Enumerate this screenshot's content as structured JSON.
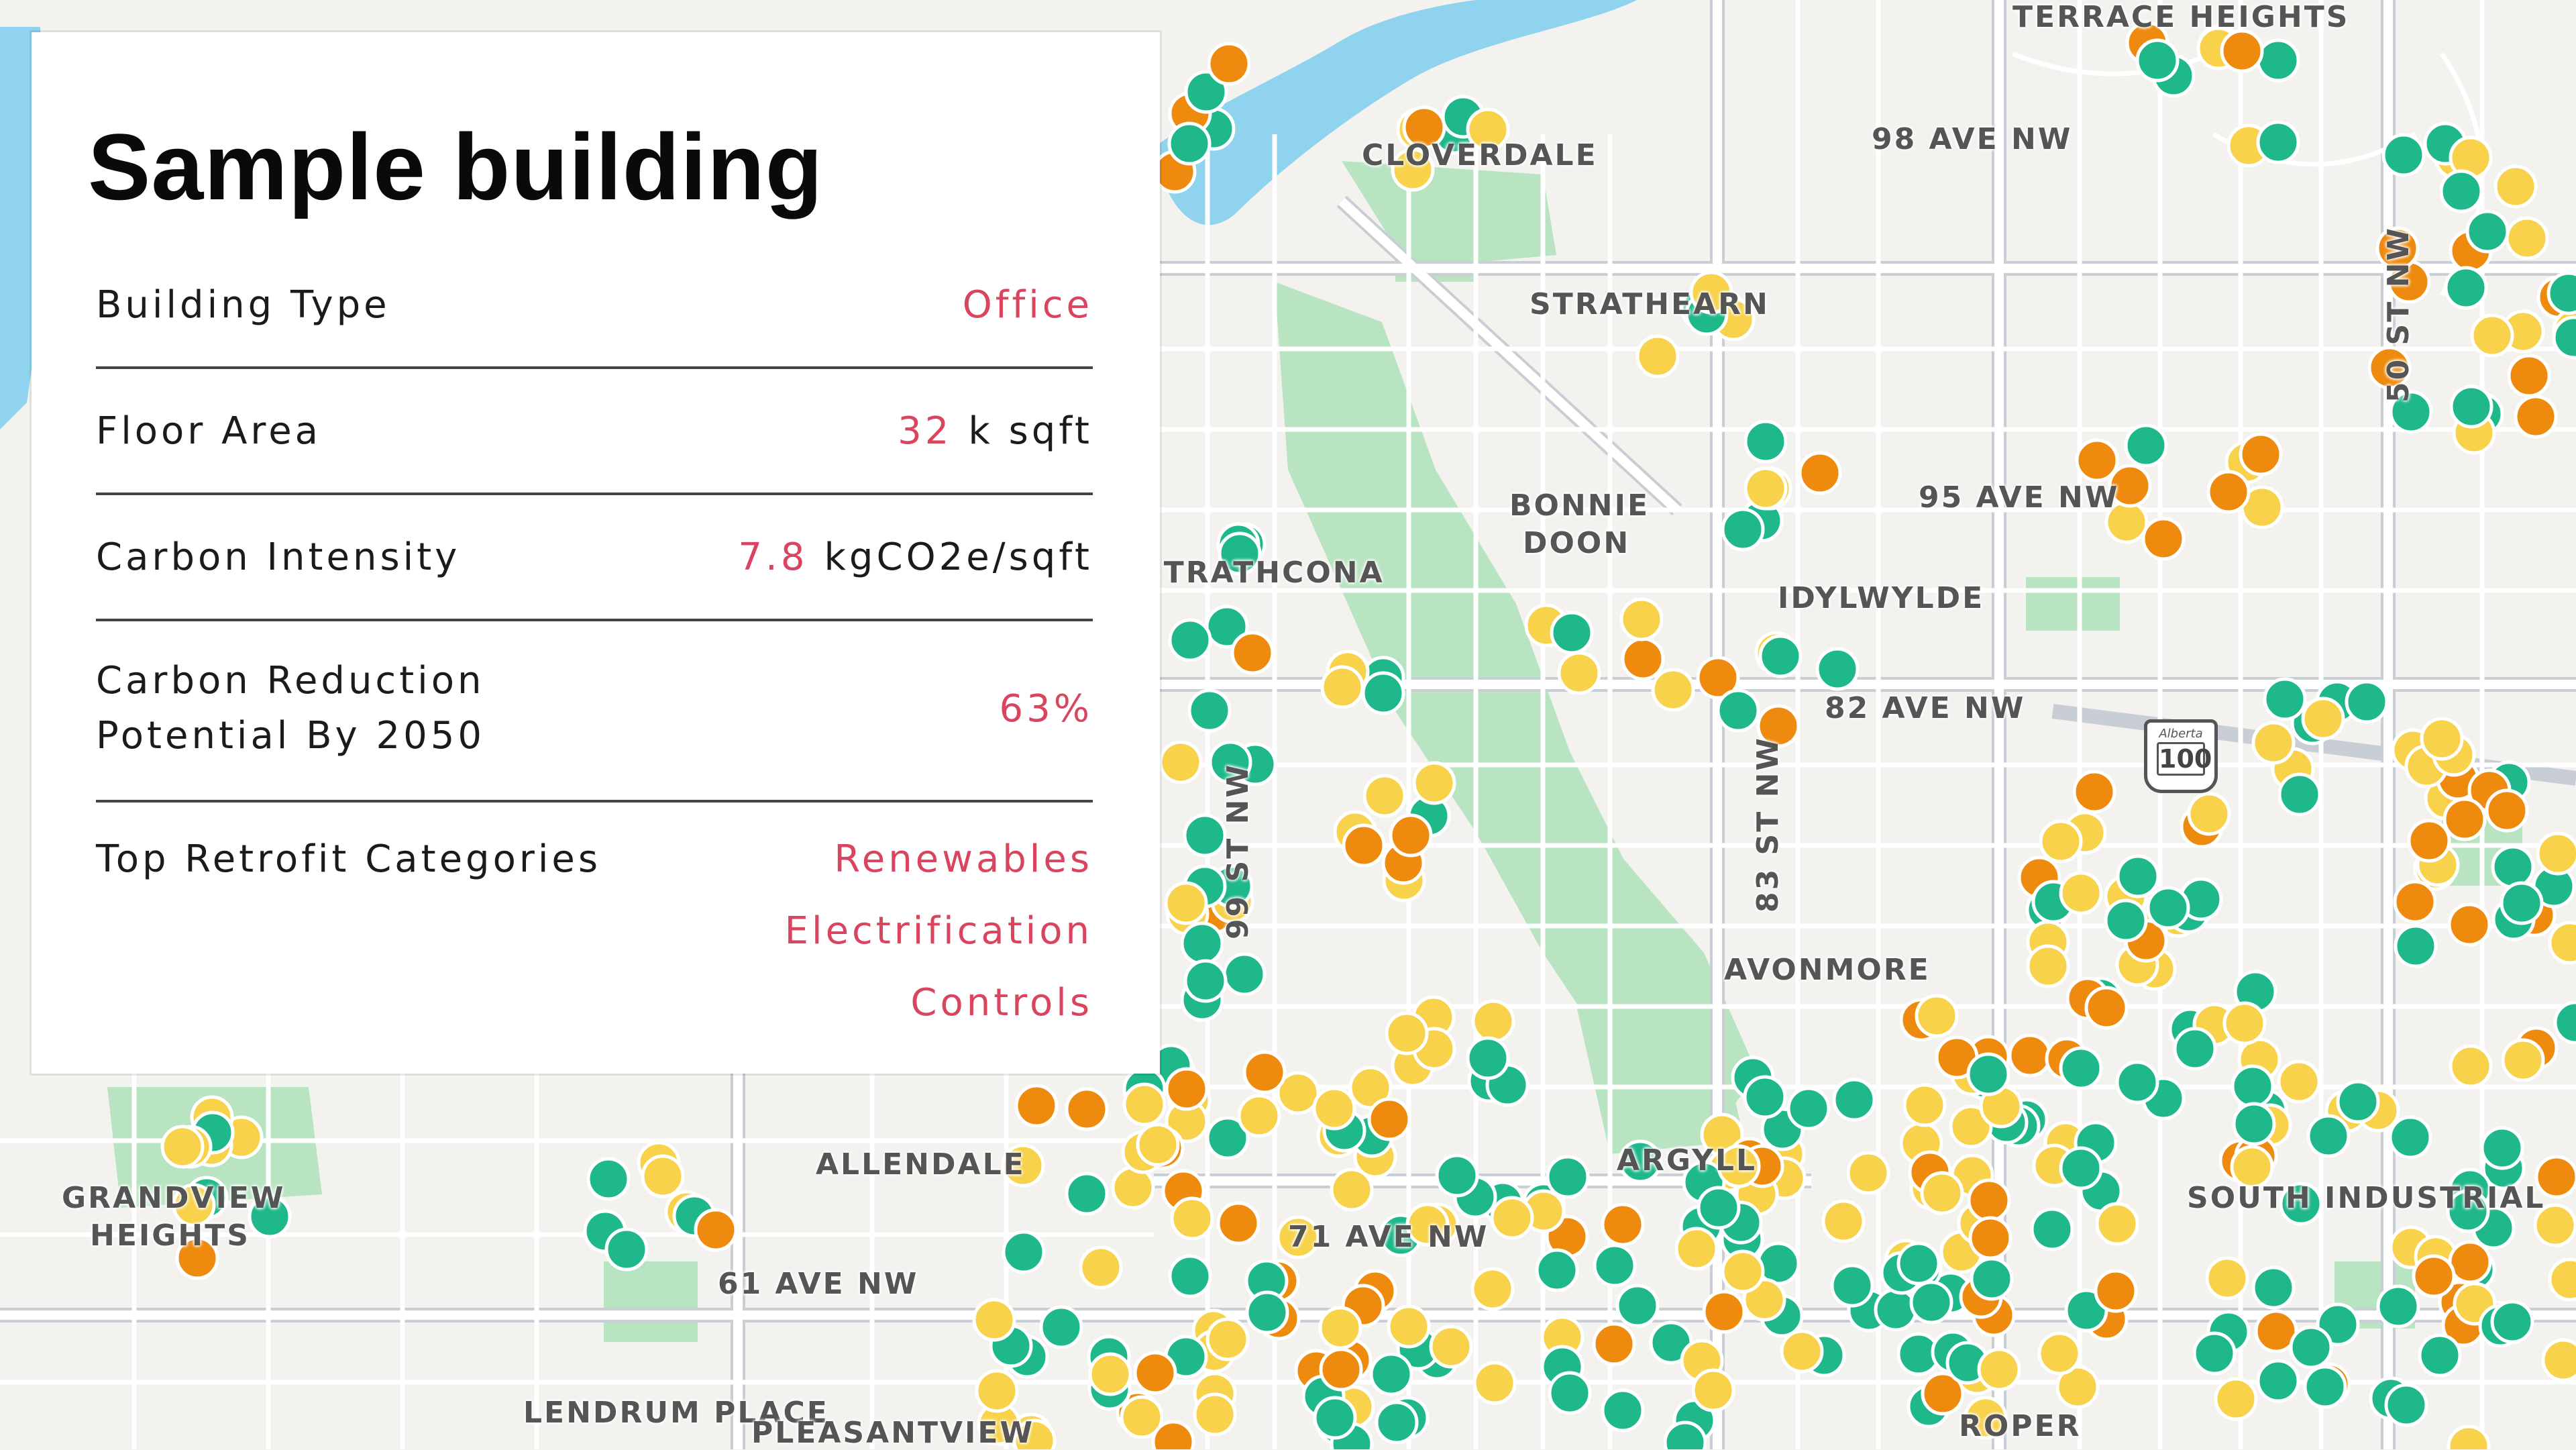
{
  "panel": {
    "title": "Sample building",
    "building_type_label": "Building Type",
    "building_type_value": "Office",
    "floor_area_label": "Floor Area",
    "floor_area_value": "32",
    "floor_area_unit": "k sqft",
    "carbon_intensity_label": "Carbon Intensity",
    "carbon_intensity_value": "7.8",
    "carbon_intensity_unit": "kgCO2e/sqft",
    "carbon_reduction_label_line1": "Carbon Reduction",
    "carbon_reduction_label_line2": "Potential By 2050",
    "carbon_reduction_value": "63%",
    "retrofit_label": "Top Retrofit Categories",
    "retrofit_categories": [
      "Renewables",
      "Electrification",
      "Controls"
    ]
  },
  "map": {
    "labels": {
      "terrace_heights": "TERRACE HEIGHTS",
      "cloverdale": "CLOVERDALE",
      "ave98": "98 AVE NW",
      "strathearn": "STRATHEARN",
      "bonnie_doon_1": "BONNIE",
      "bonnie_doon_2": "DOON",
      "strathcona": "STRATHCONA",
      "idylwylde": "IDYLWYLDE",
      "ave95": "95 AVE NW",
      "ave82": "82 AVE NW",
      "st83": "83 ST NW",
      "st50": "50 ST NW",
      "st99": "99 ST NW",
      "avonmore": "AVONMORE",
      "argyll": "ARGYLL",
      "allendale": "ALLENDALE",
      "grandview_1": "GRANDVIEW",
      "grandview_2": "HEIGHTS",
      "ave61": "61 AVE NW",
      "ave71": "71 AVE NW",
      "lendrum": "LENDRUM PLACE",
      "pleasantview": "PLEASANTVIEW",
      "south_ind": "SOUTH INDUSTRIAL",
      "roper": "ROPER",
      "hwy": "100",
      "hwy_brand": "Alberta"
    },
    "colors": {
      "green": "#1fb88a",
      "yellow": "#f7d24a",
      "orange": "#ee8a0d",
      "park": "#b9e4c2",
      "river": "#8fd3ee",
      "road": "#ffffff",
      "background": "#f3f2ef"
    }
  }
}
